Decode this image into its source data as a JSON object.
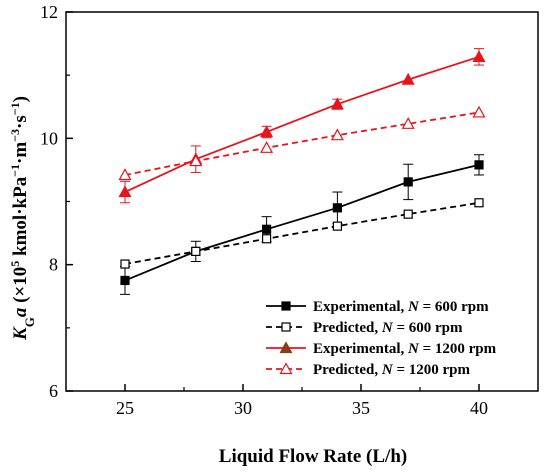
{
  "chart_data": {
    "type": "line",
    "xlabel": "Liquid Flow Rate (L/h)",
    "ylabel": {
      "main": "K",
      "sub": "G",
      "var": "a",
      "unit_open": " (×10",
      "unit_exp1": "5",
      "unit_mid1": " kmol·kPa",
      "unit_exp2": "−1",
      "unit_mid2": "·m",
      "unit_exp3": "−3",
      "unit_mid3": "·s",
      "unit_exp4": "−1",
      "unit_close": ")"
    },
    "xlim": [
      22.5,
      42.5
    ],
    "ylim": [
      6,
      12
    ],
    "xticks": [
      25,
      30,
      35,
      40
    ],
    "yticks": [
      6,
      8,
      10,
      12
    ],
    "minor_xticks": [
      27.5,
      32.5,
      37.5
    ],
    "minor_yticks": [
      7,
      9,
      11
    ],
    "grid": false,
    "legend_position": "bottom-right",
    "x": [
      25,
      28,
      31,
      34,
      37,
      40
    ],
    "series": [
      {
        "name": "Experimental, N = 600 rpm",
        "label_prefix": "Experimental, ",
        "label_var": "N",
        "label_suffix": " = 600 rpm",
        "values": [
          7.75,
          8.21,
          8.56,
          8.9,
          9.31,
          9.58
        ],
        "errors": [
          0.22,
          0.16,
          0.2,
          0.25,
          0.28,
          0.16
        ],
        "color": "#000000",
        "dashed": false,
        "marker": "square",
        "filled": true
      },
      {
        "name": "Predicted, N = 600 rpm",
        "label_prefix": "Predicted, ",
        "label_var": "N",
        "label_suffix": " = 600 rpm",
        "values": [
          8.01,
          8.21,
          8.41,
          8.61,
          8.8,
          8.98
        ],
        "errors": null,
        "color": "#000000",
        "dashed": true,
        "marker": "square",
        "filled": false
      },
      {
        "name": "Experimental, N = 1200 rpm",
        "label_prefix": "Experimental, ",
        "label_var": "N",
        "label_suffix": " = 1200 rpm",
        "values": [
          9.15,
          9.67,
          10.1,
          10.54,
          10.93,
          11.29
        ],
        "errors": [
          0.17,
          0.21,
          0.09,
          0.08,
          0.0,
          0.13
        ],
        "color": "#e8141b",
        "dashed": false,
        "marker": "triangle",
        "filled": true,
        "legend_marker_color": "#8b3a1a"
      },
      {
        "name": "Predicted, N = 1200 rpm",
        "label_prefix": "Predicted, ",
        "label_var": "N",
        "label_suffix": " = 1200 rpm",
        "values": [
          9.42,
          9.64,
          9.85,
          10.05,
          10.23,
          10.41
        ],
        "errors": null,
        "color": "#e8141b",
        "dashed": true,
        "marker": "triangle",
        "filled": false
      }
    ]
  }
}
